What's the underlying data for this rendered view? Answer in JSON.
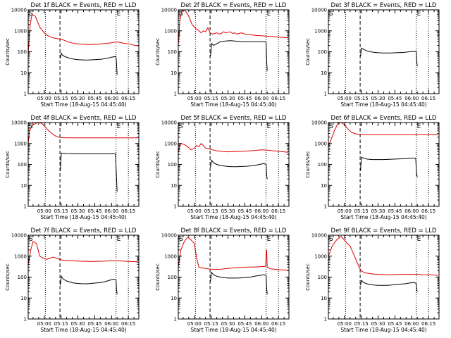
{
  "shared": {
    "x_tick_labels": [
      "05:00",
      "05:15",
      "05:30",
      "05:45",
      "06:00",
      "06:15"
    ],
    "x_tick_values_min": [
      300,
      315,
      330,
      345,
      360,
      375
    ],
    "xlim_min": [
      285.67,
      384.33
    ],
    "xlabel": "Start Time (18-Aug-15 04:45:40)",
    "ylabel": "Counts/sec",
    "y_tick_labels": [
      "1",
      "10",
      "100",
      "1000",
      "10000"
    ],
    "y_tick_values": [
      1,
      10,
      100,
      1000,
      10000
    ],
    "ylim": [
      1,
      10000
    ],
    "y_scale": "log",
    "markers": {
      "start": "S",
      "end": "E"
    },
    "vertical_lines": {
      "dotted_1_min": 301,
      "dashed_min": 314,
      "dotted_2_min": 364,
      "dotted_3_min": 375
    },
    "colors": {
      "events": "#000000",
      "lld": "#e00000"
    }
  },
  "chart_data": [
    {
      "type": "line",
      "title": "Det 1f BLACK = Events, RED = LLD",
      "series": [
        {
          "name": "Events",
          "x": [
            314.3,
            315.2,
            316,
            318,
            321,
            324,
            327,
            330,
            333,
            336,
            339,
            342,
            345,
            348,
            351,
            354,
            357,
            360,
            363.5,
            364.2,
            365
          ],
          "y": [
            50,
            85,
            70,
            60,
            52,
            47,
            44,
            42,
            41,
            40,
            40,
            41,
            42,
            43,
            44,
            47,
            50,
            55,
            60,
            45,
            8
          ]
        },
        {
          "name": "LLD",
          "x": [
            285.7,
            287.5,
            289,
            292,
            296,
            300,
            302,
            304,
            306,
            309,
            312,
            315,
            318,
            321,
            324,
            327,
            330,
            333,
            336,
            339,
            342,
            345,
            348,
            351,
            354,
            357,
            360,
            363,
            366,
            369,
            372,
            375,
            378,
            381,
            383.5
          ],
          "y": [
            80,
            2000,
            6000,
            5000,
            1500,
            800,
            650,
            550,
            500,
            450,
            420,
            400,
            350,
            300,
            270,
            250,
            240,
            230,
            225,
            220,
            220,
            225,
            230,
            240,
            250,
            260,
            270,
            290,
            290,
            270,
            250,
            240,
            220,
            200,
            190
          ]
        }
      ]
    },
    {
      "type": "line",
      "title": "Det 2f BLACK = Events, RED = LLD",
      "series": [
        {
          "name": "Events",
          "x": [
            314.3,
            315.5,
            317,
            320,
            323,
            326,
            329,
            332,
            335,
            338,
            341,
            344,
            347,
            350,
            353,
            356,
            359,
            362,
            364,
            364.5,
            365
          ],
          "y": [
            60,
            250,
            200,
            240,
            300,
            320,
            330,
            340,
            330,
            320,
            310,
            305,
            300,
            300,
            300,
            300,
            300,
            300,
            300,
            35,
            12
          ]
        },
        {
          "name": "LLD",
          "x": [
            285.7,
            287,
            289,
            292,
            295,
            298,
            300,
            302,
            304,
            306,
            308,
            310,
            312,
            314,
            316,
            318,
            320,
            322,
            324,
            326,
            328,
            330,
            332,
            334,
            336,
            338,
            340,
            342,
            345,
            350,
            355,
            360,
            365,
            370,
            375,
            380,
            383.5
          ],
          "y": [
            200,
            3000,
            10000,
            9000,
            5000,
            2000,
            1500,
            1200,
            1000,
            800,
            1000,
            900,
            1400,
            800,
            700,
            750,
            800,
            700,
            750,
            900,
            800,
            850,
            900,
            750,
            800,
            700,
            750,
            800,
            700,
            650,
            600,
            580,
            550,
            530,
            500,
            480,
            470
          ]
        }
      ]
    },
    {
      "type": "line",
      "title": "Det 3f BLACK = Events, RED = LLD",
      "series": [
        {
          "name": "Events",
          "x": [
            314.3,
            315.2,
            317,
            320,
            323,
            326,
            330,
            334,
            338,
            342,
            346,
            350,
            354,
            358,
            362,
            364,
            364.5,
            365
          ],
          "y": [
            60,
            150,
            130,
            110,
            100,
            95,
            90,
            88,
            87,
            88,
            90,
            92,
            95,
            100,
            105,
            100,
            35,
            20
          ]
        }
      ]
    },
    {
      "type": "line",
      "title": "Det 4f BLACK = Events, RED = LLD",
      "series": [
        {
          "name": "Events",
          "x": [
            314.3,
            315.2,
            317,
            320,
            325,
            330,
            335,
            340,
            345,
            350,
            355,
            360,
            363.5,
            364.2,
            365
          ],
          "y": [
            50,
            350,
            340,
            330,
            325,
            320,
            320,
            320,
            320,
            320,
            320,
            320,
            320,
            40,
            5
          ]
        },
        {
          "name": "LLD",
          "x": [
            285.7,
            287,
            289,
            292,
            295,
            298,
            301,
            304,
            307,
            310,
            313,
            316,
            320,
            330,
            340,
            350,
            360,
            370,
            380,
            383.5
          ],
          "y": [
            1000,
            4000,
            7000,
            9000,
            10000,
            9000,
            6000,
            4000,
            3000,
            2300,
            2000,
            1900,
            1850,
            1850,
            1850,
            1850,
            1850,
            1850,
            1850,
            1850
          ]
        }
      ]
    },
    {
      "type": "line",
      "title": "Det 5f BLACK = Events, RED = LLD",
      "series": [
        {
          "name": "Events",
          "x": [
            314.3,
            315.3,
            317,
            320,
            323,
            326,
            330,
            334,
            338,
            342,
            346,
            350,
            354,
            358,
            362,
            364,
            364.5,
            365
          ],
          "y": [
            70,
            160,
            120,
            100,
            90,
            85,
            80,
            78,
            78,
            80,
            82,
            85,
            90,
            100,
            110,
            100,
            30,
            20
          ]
        },
        {
          "name": "LLD",
          "x": [
            285.7,
            288,
            291,
            294,
            297,
            300,
            302,
            304,
            306,
            308,
            310,
            313,
            316,
            320,
            325,
            330,
            335,
            340,
            345,
            350,
            355,
            360,
            365,
            370,
            375,
            380,
            383.5
          ],
          "y": [
            400,
            1000,
            900,
            700,
            500,
            600,
            800,
            700,
            1000,
            800,
            600,
            550,
            500,
            450,
            420,
            400,
            410,
            420,
            430,
            450,
            470,
            500,
            480,
            450,
            420,
            400,
            380
          ]
        }
      ]
    },
    {
      "type": "line",
      "title": "Det 6f BLACK = Events, RED = LLD",
      "series": [
        {
          "name": "Events",
          "x": [
            314.3,
            315.2,
            317,
            320,
            325,
            330,
            335,
            340,
            345,
            350,
            355,
            360,
            363.5,
            364.2,
            365
          ],
          "y": [
            50,
            220,
            200,
            180,
            170,
            170,
            170,
            175,
            180,
            185,
            190,
            200,
            200,
            40,
            25
          ]
        },
        {
          "name": "LLD",
          "x": [
            285.7,
            288,
            291,
            294,
            297,
            300,
            303,
            306,
            309,
            312,
            315,
            320,
            330,
            340,
            350,
            360,
            370,
            380,
            383.5
          ],
          "y": [
            800,
            1500,
            4000,
            9000,
            10000,
            8000,
            5000,
            3500,
            3000,
            2700,
            2600,
            2600,
            2600,
            2600,
            2600,
            2600,
            2600,
            2600,
            2600
          ]
        }
      ]
    },
    {
      "type": "line",
      "title": "Det 7f BLACK = Events, RED = LLD",
      "series": [
        {
          "name": "Events",
          "x": [
            314.3,
            315.2,
            317,
            320,
            323,
            326,
            330,
            334,
            338,
            342,
            346,
            350,
            354,
            358,
            362,
            364,
            364.5,
            365
          ],
          "y": [
            40,
            110,
            80,
            65,
            58,
            52,
            50,
            48,
            48,
            50,
            52,
            55,
            60,
            70,
            80,
            75,
            25,
            15
          ]
        },
        {
          "name": "LLD",
          "x": [
            285.7,
            288,
            290,
            293,
            296,
            299,
            302,
            305,
            308,
            311,
            314,
            316,
            320,
            325,
            330,
            335,
            340,
            345,
            350,
            355,
            360,
            365,
            370,
            375,
            380,
            383.5
          ],
          "y": [
            400,
            2000,
            5000,
            4000,
            1000,
            800,
            700,
            800,
            900,
            800,
            700,
            650,
            620,
            600,
            580,
            570,
            560,
            560,
            570,
            580,
            600,
            600,
            580,
            560,
            550,
            540
          ]
        }
      ]
    },
    {
      "type": "line",
      "title": "Det 8f BLACK = Events, RED = LLD",
      "series": [
        {
          "name": "Events",
          "x": [
            314.3,
            315.2,
            317,
            320,
            323,
            326,
            330,
            334,
            338,
            342,
            346,
            350,
            354,
            358,
            362,
            364,
            364.5,
            365
          ],
          "y": [
            60,
            170,
            130,
            110,
            100,
            95,
            90,
            90,
            90,
            92,
            95,
            100,
            110,
            120,
            130,
            120,
            30,
            15
          ]
        },
        {
          "name": "LLD",
          "x": [
            285.7,
            288,
            291,
            294,
            297,
            300,
            302,
            304,
            306,
            308,
            310,
            312,
            315,
            318,
            321,
            324,
            327,
            330,
            333,
            336,
            339,
            342,
            345,
            348,
            351,
            354,
            357,
            360,
            362,
            363.5,
            364,
            364.5,
            365,
            368,
            371,
            374,
            377,
            380,
            383.5
          ],
          "y": [
            300,
            2000,
            5000,
            8000,
            6000,
            4000,
            800,
            300,
            280,
            270,
            260,
            250,
            240,
            230,
            235,
            240,
            250,
            260,
            270,
            280,
            285,
            290,
            295,
            300,
            300,
            305,
            310,
            320,
            320,
            330,
            1000,
            2000,
            300,
            250,
            240,
            230,
            220,
            220,
            210
          ]
        }
      ]
    },
    {
      "type": "line",
      "title": "Det 9f BLACK = Events, RED = LLD",
      "series": [
        {
          "name": "Events",
          "x": [
            314.3,
            315.2,
            317,
            320,
            323,
            326,
            330,
            334,
            338,
            342,
            346,
            350,
            354,
            358,
            362,
            364,
            364.5,
            365
          ],
          "y": [
            40,
            70,
            55,
            48,
            44,
            42,
            40,
            40,
            40,
            42,
            44,
            46,
            48,
            52,
            55,
            50,
            25,
            20
          ]
        },
        {
          "name": "LLD",
          "x": [
            285.7,
            289,
            293,
            297,
            301,
            305,
            309,
            313,
            315,
            318,
            322,
            326,
            330,
            335,
            340,
            345,
            350,
            355,
            360,
            365,
            370,
            375,
            380,
            383.5
          ],
          "y": [
            1000,
            3000,
            6000,
            9000,
            5000,
            3000,
            1000,
            300,
            200,
            160,
            150,
            140,
            135,
            130,
            130,
            132,
            135,
            135,
            135,
            135,
            130,
            128,
            125,
            120
          ]
        }
      ]
    }
  ]
}
